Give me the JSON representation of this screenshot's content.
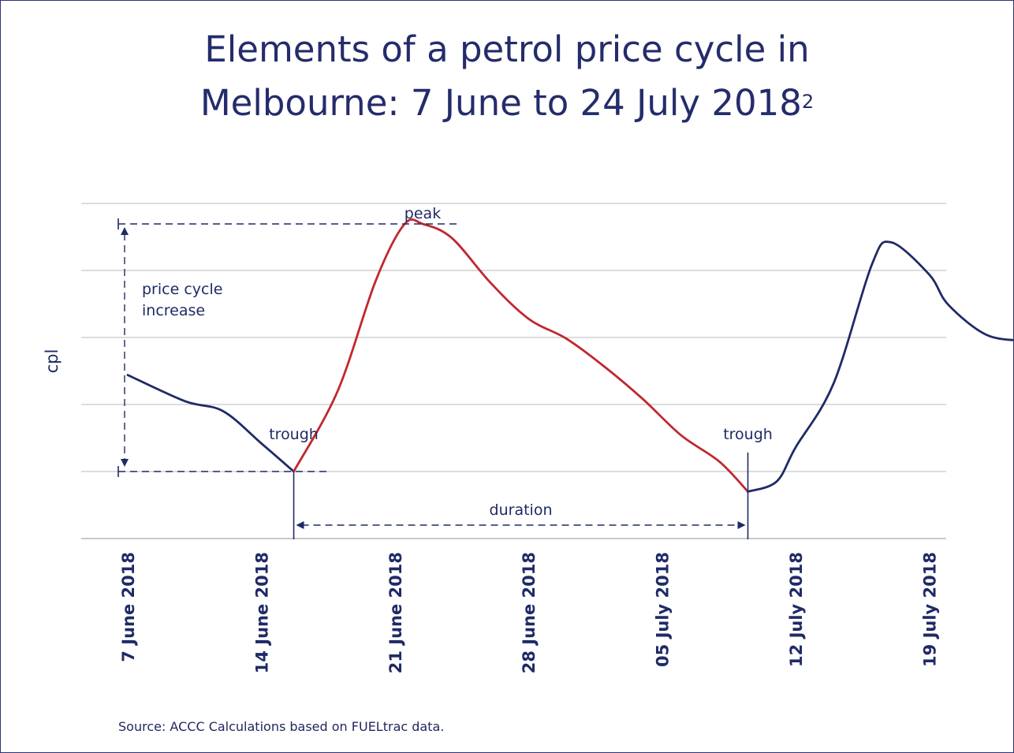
{
  "title": {
    "line1": "Elements of a petrol price cycle in",
    "line2": "Melbourne: 7 June to 24 July 2018",
    "superscript": "2"
  },
  "source": "Source: ACCC Calculations based on FUELtrac data.",
  "colors": {
    "navy": "#1f2a66",
    "red": "#c0282e",
    "grid": "#c8c8c8"
  },
  "chart_data": {
    "type": "line",
    "ylabel": "cpl",
    "xlabel": "",
    "x_ticks": [
      "7 June 2018",
      "14 June 2018",
      "21 June 2018",
      "28 June 2018",
      "05 July 2018",
      "12 July 2018",
      "19 July 2018"
    ],
    "x_range": [
      "2018-06-07",
      "2018-07-24"
    ],
    "y_gridlines": 6,
    "y_tick_labels": false,
    "series": [
      {
        "segment": "pre-cycle",
        "color": "navy",
        "points": [
          [
            "2018-06-07",
            48
          ],
          [
            "2018-06-10",
            35
          ],
          [
            "2018-06-12",
            30
          ],
          [
            "2018-06-14",
            14
          ],
          [
            "2018-06-15.7",
            0
          ]
        ]
      },
      {
        "segment": "cycle",
        "color": "red",
        "points": [
          [
            "2018-06-15.7",
            0
          ],
          [
            "2018-06-18",
            40
          ],
          [
            "2018-06-20",
            95
          ],
          [
            "2018-06-21.5",
            123
          ],
          [
            "2018-06-22.5",
            123
          ],
          [
            "2018-06-24",
            116
          ],
          [
            "2018-06-26",
            94
          ],
          [
            "2018-06-28",
            76
          ],
          [
            "2018-06-30",
            66
          ],
          [
            "2018-07-02",
            52
          ],
          [
            "2018-07-04",
            36
          ],
          [
            "2018-07-06",
            18
          ],
          [
            "2018-07-08",
            5
          ],
          [
            "2018-07-09.5",
            -10
          ]
        ]
      },
      {
        "segment": "post-cycle",
        "color": "navy",
        "points": [
          [
            "2018-07-09.5",
            -10
          ],
          [
            "2018-07-11",
            -5
          ],
          [
            "2018-07-12",
            12
          ],
          [
            "2018-07-14",
            44
          ],
          [
            "2018-07-16",
            103
          ],
          [
            "2018-07-17",
            114
          ],
          [
            "2018-07-19",
            98
          ],
          [
            "2018-07-20",
            83
          ],
          [
            "2018-07-22",
            68
          ],
          [
            "2018-07-24",
            65
          ]
        ]
      }
    ],
    "annotations": {
      "peak": "peak",
      "trough1": "trough",
      "trough2": "trough",
      "increase_line1": "price cycle",
      "increase_line2": "increase",
      "duration": "duration"
    }
  }
}
